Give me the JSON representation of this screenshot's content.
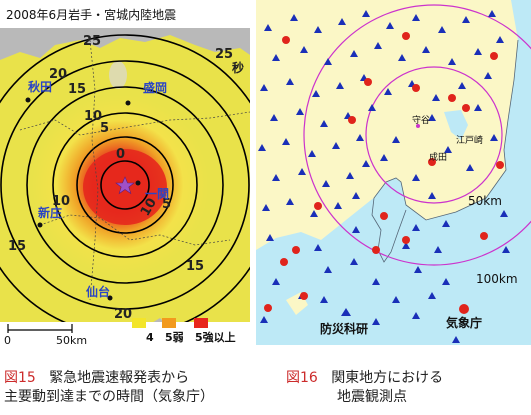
{
  "figure15": {
    "map_title": "2008年6月岩手・宮城内陸地震",
    "ring_labels": {
      "r0": "0",
      "r5": "5",
      "r10": "10",
      "r15": "15",
      "r20": "20",
      "r25": "25",
      "unit": "秒"
    },
    "places": {
      "akita": "秋田",
      "morioka": "盛岡",
      "shinjo": "新庄",
      "ichinoseki": "一関",
      "sendai": "仙台"
    },
    "scale_bar": {
      "start": "0",
      "end": "50km"
    },
    "legend": {
      "items": [
        {
          "label": "4",
          "color": "#f3e52a"
        },
        {
          "label": "5弱",
          "color": "#f29a1e"
        },
        {
          "label": "5強以上",
          "color": "#e8261c"
        }
      ]
    },
    "colors": {
      "land_low": "#e9e24a",
      "land_mid": "#f0a126",
      "land_high": "#e5281d",
      "sea": "#b9b9b9",
      "epicenter": "#a050c8"
    },
    "caption": {
      "number": "図15",
      "line1": "緊急地震速報発表から",
      "line2": "主要動到達までの時間（気象庁）"
    }
  },
  "figure16": {
    "labels": {
      "moriya": "守谷",
      "edosaki": "江戸崎",
      "narita": "成田",
      "ring_50": "50km",
      "ring_100": "100km",
      "nied": "防災科研",
      "jma": "気象庁"
    },
    "colors": {
      "land": "#fbf7c6",
      "sea": "#bde9f6",
      "station_nied": "#1a2fb8",
      "station_jma": "#e0241c",
      "ring": "#cc33cc"
    },
    "caption": {
      "number": "図16",
      "line1": "関東地方における",
      "line2": "地震観測点"
    }
  }
}
